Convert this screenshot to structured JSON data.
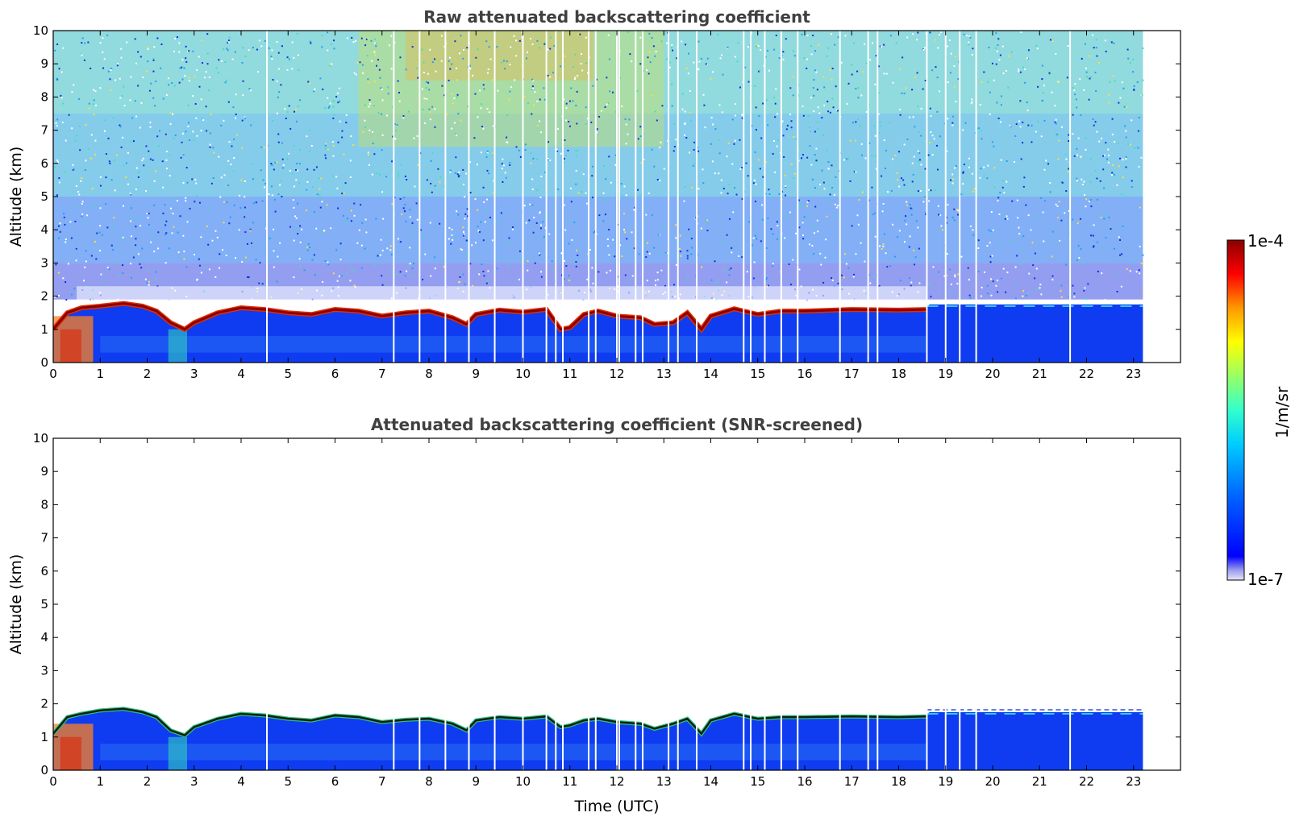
{
  "chart_data": [
    {
      "type": "heatmap",
      "title": "Raw attenuated backscattering coefficient",
      "xlabel": "",
      "ylabel": "Altitude (km)",
      "xlim": [
        0,
        24
      ],
      "ylim": [
        0,
        10
      ],
      "x_ticks": [
        "0",
        "1",
        "2",
        "3",
        "4",
        "5",
        "6",
        "7",
        "8",
        "9",
        "10",
        "11",
        "12",
        "13",
        "14",
        "15",
        "16",
        "17",
        "18",
        "19",
        "20",
        "21",
        "22",
        "23"
      ],
      "y_ticks": [
        "0",
        "1",
        "2",
        "3",
        "4",
        "5",
        "6",
        "7",
        "8",
        "9",
        "10"
      ],
      "data_end_time": 23.2,
      "noise_floor_altitude_km": 1.9,
      "cloud_layer": {
        "time": [
          0,
          0.3,
          0.6,
          1.0,
          1.5,
          1.9,
          2.2,
          2.5,
          2.8,
          3.0,
          3.5,
          4.0,
          4.5,
          5.0,
          5.5,
          6.0,
          6.5,
          7.0,
          7.5,
          8.0,
          8.5,
          8.8,
          9.0,
          9.5,
          10.0,
          10.5,
          10.8,
          11.0,
          11.3,
          11.6,
          12.0,
          12.5,
          12.8,
          13.2,
          13.5,
          13.8,
          14.0,
          14.5,
          15.0,
          15.5,
          16.0,
          17.0,
          18.0,
          18.6
        ],
        "altitude_km": [
          1.0,
          1.5,
          1.65,
          1.7,
          1.78,
          1.7,
          1.55,
          1.2,
          1.0,
          1.2,
          1.5,
          1.65,
          1.6,
          1.5,
          1.45,
          1.6,
          1.55,
          1.4,
          1.5,
          1.55,
          1.35,
          1.15,
          1.45,
          1.58,
          1.52,
          1.6,
          1.0,
          1.05,
          1.45,
          1.55,
          1.4,
          1.35,
          1.15,
          1.2,
          1.5,
          1.0,
          1.4,
          1.62,
          1.45,
          1.55,
          1.55,
          1.6,
          1.58,
          1.6
        ]
      },
      "gaps_utc": [
        4.55,
        7.25,
        7.8,
        8.35,
        8.85,
        9.4,
        10.0,
        10.5,
        10.7,
        10.85,
        11.4,
        11.55,
        12.0,
        12.05,
        12.4,
        12.55,
        13.1,
        13.3,
        13.7,
        14.7,
        14.85,
        15.15,
        15.5,
        15.85,
        16.75,
        17.35,
        17.55,
        18.6,
        19.0,
        19.3,
        19.65,
        21.65
      ]
    },
    {
      "type": "heatmap",
      "title": "Attenuated backscattering coefficient (SNR-screened)",
      "xlabel": "Time (UTC)",
      "ylabel": "Altitude (km)",
      "xlim": [
        0,
        24
      ],
      "ylim": [
        0,
        10
      ],
      "x_ticks": [
        "0",
        "1",
        "2",
        "3",
        "4",
        "5",
        "6",
        "7",
        "8",
        "9",
        "10",
        "11",
        "12",
        "13",
        "14",
        "15",
        "16",
        "17",
        "18",
        "19",
        "20",
        "21",
        "22",
        "23"
      ],
      "y_ticks": [
        "0",
        "1",
        "2",
        "3",
        "4",
        "5",
        "6",
        "7",
        "8",
        "9",
        "10"
      ],
      "data_end_time": 23.2,
      "cloud_layer": {
        "time": [
          0,
          0.3,
          0.6,
          1.0,
          1.5,
          1.9,
          2.2,
          2.5,
          2.8,
          3.0,
          3.5,
          4.0,
          4.5,
          5.0,
          5.5,
          6.0,
          6.5,
          7.0,
          7.5,
          8.0,
          8.5,
          8.8,
          9.0,
          9.5,
          10.0,
          10.5,
          10.8,
          11.0,
          11.3,
          11.6,
          12.0,
          12.5,
          12.8,
          13.2,
          13.5,
          13.8,
          14.0,
          14.5,
          15.0,
          15.5,
          16.0,
          17.0,
          18.0,
          18.6
        ],
        "altitude_km": [
          1.1,
          1.6,
          1.7,
          1.8,
          1.85,
          1.75,
          1.6,
          1.2,
          1.05,
          1.3,
          1.55,
          1.7,
          1.65,
          1.55,
          1.5,
          1.65,
          1.6,
          1.45,
          1.52,
          1.55,
          1.4,
          1.2,
          1.5,
          1.6,
          1.55,
          1.62,
          1.3,
          1.35,
          1.5,
          1.55,
          1.45,
          1.4,
          1.25,
          1.4,
          1.55,
          1.1,
          1.5,
          1.7,
          1.55,
          1.6,
          1.6,
          1.62,
          1.6,
          1.62
        ]
      },
      "gaps_utc": [
        4.55,
        7.25,
        7.8,
        8.35,
        8.85,
        9.4,
        10.0,
        10.5,
        10.7,
        10.85,
        11.4,
        11.55,
        12.0,
        12.05,
        12.4,
        12.55,
        13.1,
        13.3,
        13.7,
        14.7,
        14.85,
        15.15,
        15.5,
        15.85,
        16.75,
        17.35,
        17.55,
        18.6,
        19.0,
        19.3,
        19.65,
        21.65
      ]
    }
  ],
  "colorbar": {
    "label": "1/m/sr",
    "max_label": "1e-4",
    "min_label": "1e-7",
    "colormap": "jet",
    "colors": [
      "#e6e6f5",
      "#9999ee",
      "#0000ff",
      "#0066ff",
      "#00ccff",
      "#33ffcc",
      "#99ff66",
      "#ffff00",
      "#ff9900",
      "#ff0000",
      "#8b0000"
    ]
  }
}
